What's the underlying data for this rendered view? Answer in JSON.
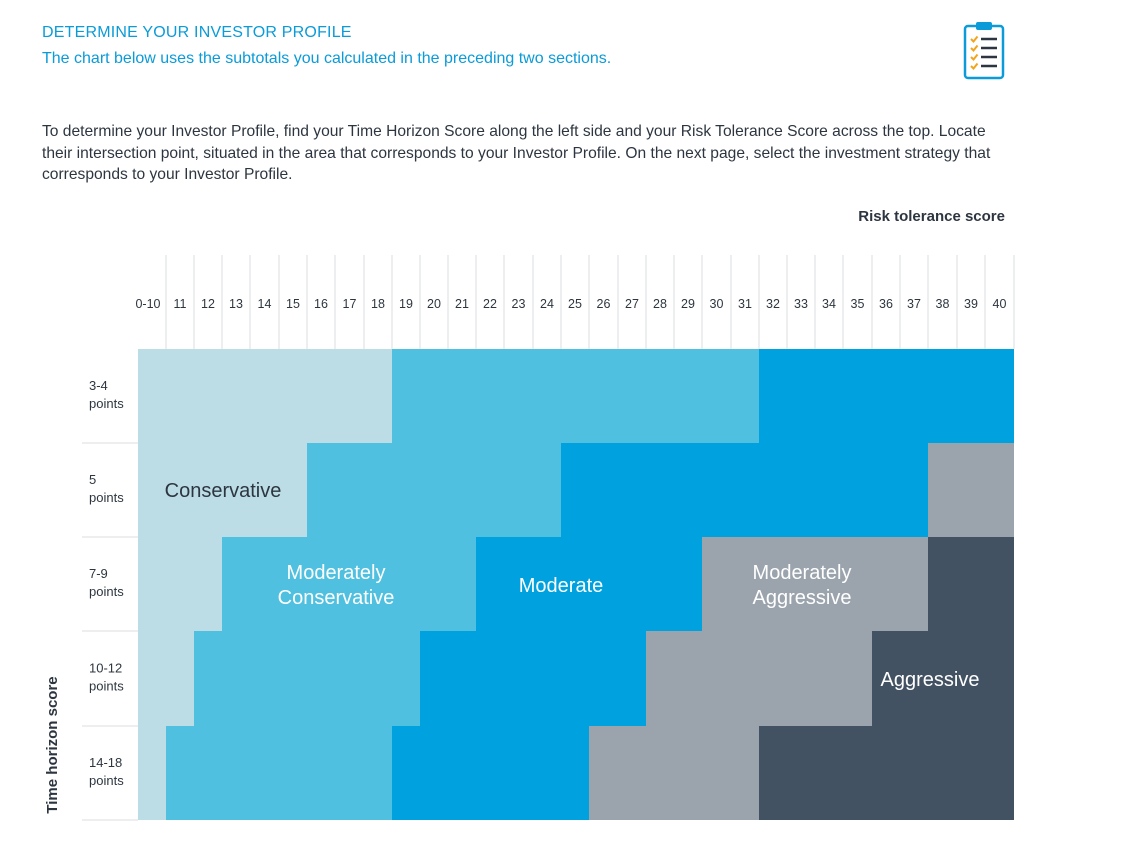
{
  "header": {
    "title": "DETERMINE YOUR INVESTOR PROFILE",
    "subtitle": "The chart below uses the subtotals you calculated in the preceding two sections."
  },
  "icon": "clipboard-checklist-icon",
  "intro": "To determine your Investor Profile, find your Time Horizon Score along the left side and your Risk Tolerance Score across the top. Locate their intersection point, situated in the area that corresponds to your Investor Profile. On the next page, select the investment strategy that corresponds to your Investor Profile.",
  "colors": {
    "accent": "#0a9bd8",
    "conservative": "#bcdde6",
    "moderately_conservative": "#4fc0e0",
    "moderate": "#00a1df",
    "moderately_aggressive": "#9ba4ad",
    "aggressive": "#435263",
    "text_dark": "#2d3640"
  },
  "chart_data": {
    "type": "heatmap",
    "xlabel": "Risk tolerance score",
    "ylabel": "Time horizon score",
    "x_ticks": [
      "0-10",
      "11",
      "12",
      "13",
      "14",
      "15",
      "16",
      "17",
      "18",
      "19",
      "20",
      "21",
      "22",
      "23",
      "24",
      "25",
      "26",
      "27",
      "28",
      "29",
      "30",
      "31",
      "32",
      "33",
      "34",
      "35",
      "36",
      "37",
      "38",
      "39",
      "40"
    ],
    "y_ticks": [
      {
        "line1": "3-4",
        "line2": "points"
      },
      {
        "line1": "5",
        "line2": "points"
      },
      {
        "line1": "7-9",
        "line2": "points"
      },
      {
        "line1": "10-12",
        "line2": "points"
      },
      {
        "line1": "14-18",
        "line2": "points"
      }
    ],
    "categories": [
      "Conservative",
      "Moderately Conservative",
      "Moderate",
      "Moderately Aggressive",
      "Aggressive"
    ],
    "category_labels": [
      {
        "lines": [
          "Conservative"
        ]
      },
      {
        "lines": [
          "Moderately",
          "Conservative"
        ]
      },
      {
        "lines": [
          "Moderate"
        ]
      },
      {
        "lines": [
          "Moderately",
          "Aggressive"
        ]
      },
      {
        "lines": [
          "Aggressive"
        ]
      }
    ],
    "regions_by_row": [
      {
        "row": "3-4 points",
        "Conservative": [
          "0-10",
          "18"
        ],
        "Moderately Conservative": [
          "19",
          "31"
        ],
        "Moderate": [
          "32",
          "40"
        ]
      },
      {
        "row": "5 points",
        "Conservative": [
          "0-10",
          "15"
        ],
        "Moderately Conservative": [
          "16",
          "24"
        ],
        "Moderate": [
          "25",
          "37"
        ],
        "Moderately Aggressive": [
          "38",
          "40"
        ]
      },
      {
        "row": "7-9 points",
        "Conservative": [
          "0-10",
          "12"
        ],
        "Moderately Conservative": [
          "13",
          "21"
        ],
        "Moderate": [
          "22",
          "29"
        ],
        "Moderately Aggressive": [
          "30",
          "37"
        ],
        "Aggressive": [
          "38",
          "40"
        ]
      },
      {
        "row": "10-12 points",
        "Conservative": [
          "0-10",
          "11"
        ],
        "Moderately Conservative": [
          "12",
          "19"
        ],
        "Moderate": [
          "20",
          "27"
        ],
        "Moderately Aggressive": [
          "28",
          "35"
        ],
        "Aggressive": [
          "36",
          "40"
        ]
      },
      {
        "row": "14-18 points",
        "Conservative": [
          "0-10",
          "0-10"
        ],
        "Moderately Conservative": [
          "11",
          "18"
        ],
        "Moderate": [
          "19",
          "25"
        ],
        "Moderately Aggressive": [
          "26",
          "31"
        ],
        "Aggressive": [
          "32",
          "40"
        ]
      }
    ]
  }
}
